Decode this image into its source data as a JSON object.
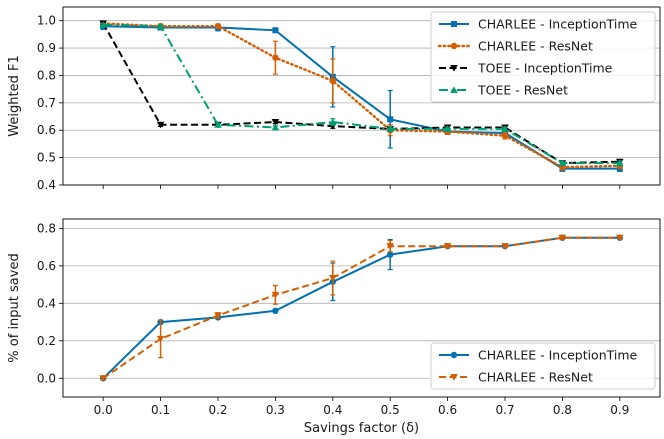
{
  "chart_data": [
    {
      "type": "line",
      "xlabel": "",
      "ylabel": "Weighted F1",
      "xlim": [
        -0.07,
        0.97
      ],
      "ylim": [
        0.4,
        1.05
      ],
      "x": [
        0.0,
        0.1,
        0.2,
        0.3,
        0.4,
        0.5,
        0.6,
        0.7,
        0.8,
        0.9
      ],
      "xticks": [
        "0.0",
        "0.1",
        "0.2",
        "0.3",
        "0.4",
        "0.5",
        "0.6",
        "0.7",
        "0.8",
        "0.9"
      ],
      "yticks": [
        "0.4",
        "0.5",
        "0.6",
        "0.7",
        "0.8",
        "0.9",
        "1.0"
      ],
      "grid": "horizontal",
      "legend": "top-right",
      "series": [
        {
          "name": "CHARLEE - InceptionTime",
          "color": "#0072b2",
          "line_style": "solid",
          "marker": "square",
          "values": [
            0.98,
            0.975,
            0.975,
            0.965,
            0.795,
            0.64,
            0.595,
            0.59,
            0.46,
            0.46
          ],
          "errors": [
            0.012,
            0.008,
            0.012,
            0.008,
            0.11,
            0.105,
            0.01,
            0.012,
            0.01,
            0.01
          ]
        },
        {
          "name": "CHARLEE - ResNet",
          "color": "#d55e00",
          "line_style": "dotted",
          "marker": "circle",
          "values": [
            0.99,
            0.98,
            0.98,
            0.865,
            0.78,
            0.6,
            0.595,
            0.58,
            0.465,
            0.47
          ],
          "errors": [
            0.008,
            0.008,
            0.008,
            0.06,
            0.08,
            0.02,
            0.01,
            0.012,
            0.01,
            0.01
          ]
        },
        {
          "name": "TOEE - InceptionTime",
          "color": "#000000",
          "line_style": "dashed",
          "marker": "triangle-down",
          "values": [
            0.99,
            0.62,
            0.62,
            0.63,
            0.615,
            0.605,
            0.61,
            0.61,
            0.48,
            0.485
          ],
          "errors": [
            0.005,
            0.006,
            0.006,
            0.006,
            0.008,
            0.008,
            0.006,
            0.006,
            0.008,
            0.008
          ]
        },
        {
          "name": "TOEE - ResNet",
          "color": "#009e73",
          "line_style": "dashdot",
          "marker": "triangle-up",
          "values": [
            0.985,
            0.98,
            0.62,
            0.61,
            0.63,
            0.605,
            0.605,
            0.605,
            0.48,
            0.48
          ],
          "errors": [
            0.005,
            0.006,
            0.006,
            0.006,
            0.012,
            0.008,
            0.006,
            0.006,
            0.008,
            0.008
          ]
        }
      ]
    },
    {
      "type": "line",
      "xlabel": "Savings factor (δ)",
      "ylabel": "% of input saved",
      "xlim": [
        -0.07,
        0.97
      ],
      "ylim": [
        -0.1,
        0.85
      ],
      "x": [
        0.0,
        0.1,
        0.2,
        0.3,
        0.4,
        0.5,
        0.6,
        0.7,
        0.8,
        0.9
      ],
      "xticks": [
        "0.0",
        "0.1",
        "0.2",
        "0.3",
        "0.4",
        "0.5",
        "0.6",
        "0.7",
        "0.8",
        "0.9"
      ],
      "yticks": [
        "0.0",
        "0.2",
        "0.4",
        "0.6",
        "0.8"
      ],
      "grid": "horizontal",
      "legend": "bottom-right",
      "series": [
        {
          "name": "CHARLEE - InceptionTime",
          "color": "#0072b2",
          "line_style": "solid",
          "marker": "circle",
          "values": [
            0.0,
            0.3,
            0.325,
            0.36,
            0.515,
            0.66,
            0.705,
            0.705,
            0.75,
            0.75
          ],
          "errors": [
            0.008,
            0.008,
            0.008,
            0.008,
            0.1,
            0.08,
            0.008,
            0.008,
            0.008,
            0.008
          ]
        },
        {
          "name": "CHARLEE - ResNet",
          "color": "#d55e00",
          "line_style": "dashed",
          "marker": "triangle-down",
          "values": [
            0.0,
            0.21,
            0.335,
            0.445,
            0.535,
            0.705,
            0.705,
            0.705,
            0.75,
            0.75
          ],
          "errors": [
            0.008,
            0.1,
            0.015,
            0.05,
            0.09,
            0.03,
            0.008,
            0.008,
            0.008,
            0.008
          ]
        }
      ]
    }
  ]
}
